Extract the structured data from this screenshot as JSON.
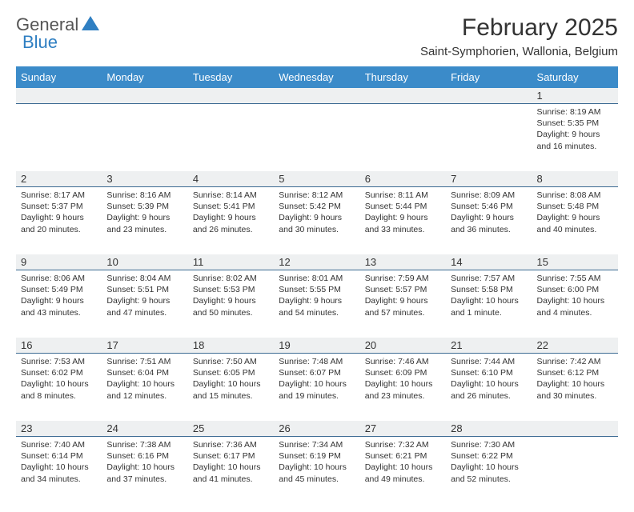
{
  "brand": {
    "part1": "General",
    "part2": "Blue"
  },
  "title": "February 2025",
  "subtitle": "Saint-Symphorien, Wallonia, Belgium",
  "colors": {
    "header_bg": "#3b8bc9",
    "header_text": "#ffffff",
    "daynum_bg": "#eef0f1",
    "daynum_border": "#3b6a92",
    "text": "#333333",
    "brand_gray": "#555555",
    "brand_blue": "#2f7fc2",
    "page_bg": "#ffffff"
  },
  "typography": {
    "title_fontsize": 30,
    "subtitle_fontsize": 15,
    "dayhead_fontsize": 13,
    "cell_fontsize": 10.5
  },
  "day_names": [
    "Sunday",
    "Monday",
    "Tuesday",
    "Wednesday",
    "Thursday",
    "Friday",
    "Saturday"
  ],
  "weeks": [
    [
      {
        "n": "",
        "sunrise": "",
        "sunset": "",
        "daylight": ""
      },
      {
        "n": "",
        "sunrise": "",
        "sunset": "",
        "daylight": ""
      },
      {
        "n": "",
        "sunrise": "",
        "sunset": "",
        "daylight": ""
      },
      {
        "n": "",
        "sunrise": "",
        "sunset": "",
        "daylight": ""
      },
      {
        "n": "",
        "sunrise": "",
        "sunset": "",
        "daylight": ""
      },
      {
        "n": "",
        "sunrise": "",
        "sunset": "",
        "daylight": ""
      },
      {
        "n": "1",
        "sunrise": "Sunrise: 8:19 AM",
        "sunset": "Sunset: 5:35 PM",
        "daylight": "Daylight: 9 hours and 16 minutes."
      }
    ],
    [
      {
        "n": "2",
        "sunrise": "Sunrise: 8:17 AM",
        "sunset": "Sunset: 5:37 PM",
        "daylight": "Daylight: 9 hours and 20 minutes."
      },
      {
        "n": "3",
        "sunrise": "Sunrise: 8:16 AM",
        "sunset": "Sunset: 5:39 PM",
        "daylight": "Daylight: 9 hours and 23 minutes."
      },
      {
        "n": "4",
        "sunrise": "Sunrise: 8:14 AM",
        "sunset": "Sunset: 5:41 PM",
        "daylight": "Daylight: 9 hours and 26 minutes."
      },
      {
        "n": "5",
        "sunrise": "Sunrise: 8:12 AM",
        "sunset": "Sunset: 5:42 PM",
        "daylight": "Daylight: 9 hours and 30 minutes."
      },
      {
        "n": "6",
        "sunrise": "Sunrise: 8:11 AM",
        "sunset": "Sunset: 5:44 PM",
        "daylight": "Daylight: 9 hours and 33 minutes."
      },
      {
        "n": "7",
        "sunrise": "Sunrise: 8:09 AM",
        "sunset": "Sunset: 5:46 PM",
        "daylight": "Daylight: 9 hours and 36 minutes."
      },
      {
        "n": "8",
        "sunrise": "Sunrise: 8:08 AM",
        "sunset": "Sunset: 5:48 PM",
        "daylight": "Daylight: 9 hours and 40 minutes."
      }
    ],
    [
      {
        "n": "9",
        "sunrise": "Sunrise: 8:06 AM",
        "sunset": "Sunset: 5:49 PM",
        "daylight": "Daylight: 9 hours and 43 minutes."
      },
      {
        "n": "10",
        "sunrise": "Sunrise: 8:04 AM",
        "sunset": "Sunset: 5:51 PM",
        "daylight": "Daylight: 9 hours and 47 minutes."
      },
      {
        "n": "11",
        "sunrise": "Sunrise: 8:02 AM",
        "sunset": "Sunset: 5:53 PM",
        "daylight": "Daylight: 9 hours and 50 minutes."
      },
      {
        "n": "12",
        "sunrise": "Sunrise: 8:01 AM",
        "sunset": "Sunset: 5:55 PM",
        "daylight": "Daylight: 9 hours and 54 minutes."
      },
      {
        "n": "13",
        "sunrise": "Sunrise: 7:59 AM",
        "sunset": "Sunset: 5:57 PM",
        "daylight": "Daylight: 9 hours and 57 minutes."
      },
      {
        "n": "14",
        "sunrise": "Sunrise: 7:57 AM",
        "sunset": "Sunset: 5:58 PM",
        "daylight": "Daylight: 10 hours and 1 minute."
      },
      {
        "n": "15",
        "sunrise": "Sunrise: 7:55 AM",
        "sunset": "Sunset: 6:00 PM",
        "daylight": "Daylight: 10 hours and 4 minutes."
      }
    ],
    [
      {
        "n": "16",
        "sunrise": "Sunrise: 7:53 AM",
        "sunset": "Sunset: 6:02 PM",
        "daylight": "Daylight: 10 hours and 8 minutes."
      },
      {
        "n": "17",
        "sunrise": "Sunrise: 7:51 AM",
        "sunset": "Sunset: 6:04 PM",
        "daylight": "Daylight: 10 hours and 12 minutes."
      },
      {
        "n": "18",
        "sunrise": "Sunrise: 7:50 AM",
        "sunset": "Sunset: 6:05 PM",
        "daylight": "Daylight: 10 hours and 15 minutes."
      },
      {
        "n": "19",
        "sunrise": "Sunrise: 7:48 AM",
        "sunset": "Sunset: 6:07 PM",
        "daylight": "Daylight: 10 hours and 19 minutes."
      },
      {
        "n": "20",
        "sunrise": "Sunrise: 7:46 AM",
        "sunset": "Sunset: 6:09 PM",
        "daylight": "Daylight: 10 hours and 23 minutes."
      },
      {
        "n": "21",
        "sunrise": "Sunrise: 7:44 AM",
        "sunset": "Sunset: 6:10 PM",
        "daylight": "Daylight: 10 hours and 26 minutes."
      },
      {
        "n": "22",
        "sunrise": "Sunrise: 7:42 AM",
        "sunset": "Sunset: 6:12 PM",
        "daylight": "Daylight: 10 hours and 30 minutes."
      }
    ],
    [
      {
        "n": "23",
        "sunrise": "Sunrise: 7:40 AM",
        "sunset": "Sunset: 6:14 PM",
        "daylight": "Daylight: 10 hours and 34 minutes."
      },
      {
        "n": "24",
        "sunrise": "Sunrise: 7:38 AM",
        "sunset": "Sunset: 6:16 PM",
        "daylight": "Daylight: 10 hours and 37 minutes."
      },
      {
        "n": "25",
        "sunrise": "Sunrise: 7:36 AM",
        "sunset": "Sunset: 6:17 PM",
        "daylight": "Daylight: 10 hours and 41 minutes."
      },
      {
        "n": "26",
        "sunrise": "Sunrise: 7:34 AM",
        "sunset": "Sunset: 6:19 PM",
        "daylight": "Daylight: 10 hours and 45 minutes."
      },
      {
        "n": "27",
        "sunrise": "Sunrise: 7:32 AM",
        "sunset": "Sunset: 6:21 PM",
        "daylight": "Daylight: 10 hours and 49 minutes."
      },
      {
        "n": "28",
        "sunrise": "Sunrise: 7:30 AM",
        "sunset": "Sunset: 6:22 PM",
        "daylight": "Daylight: 10 hours and 52 minutes."
      },
      {
        "n": "",
        "sunrise": "",
        "sunset": "",
        "daylight": ""
      }
    ]
  ]
}
